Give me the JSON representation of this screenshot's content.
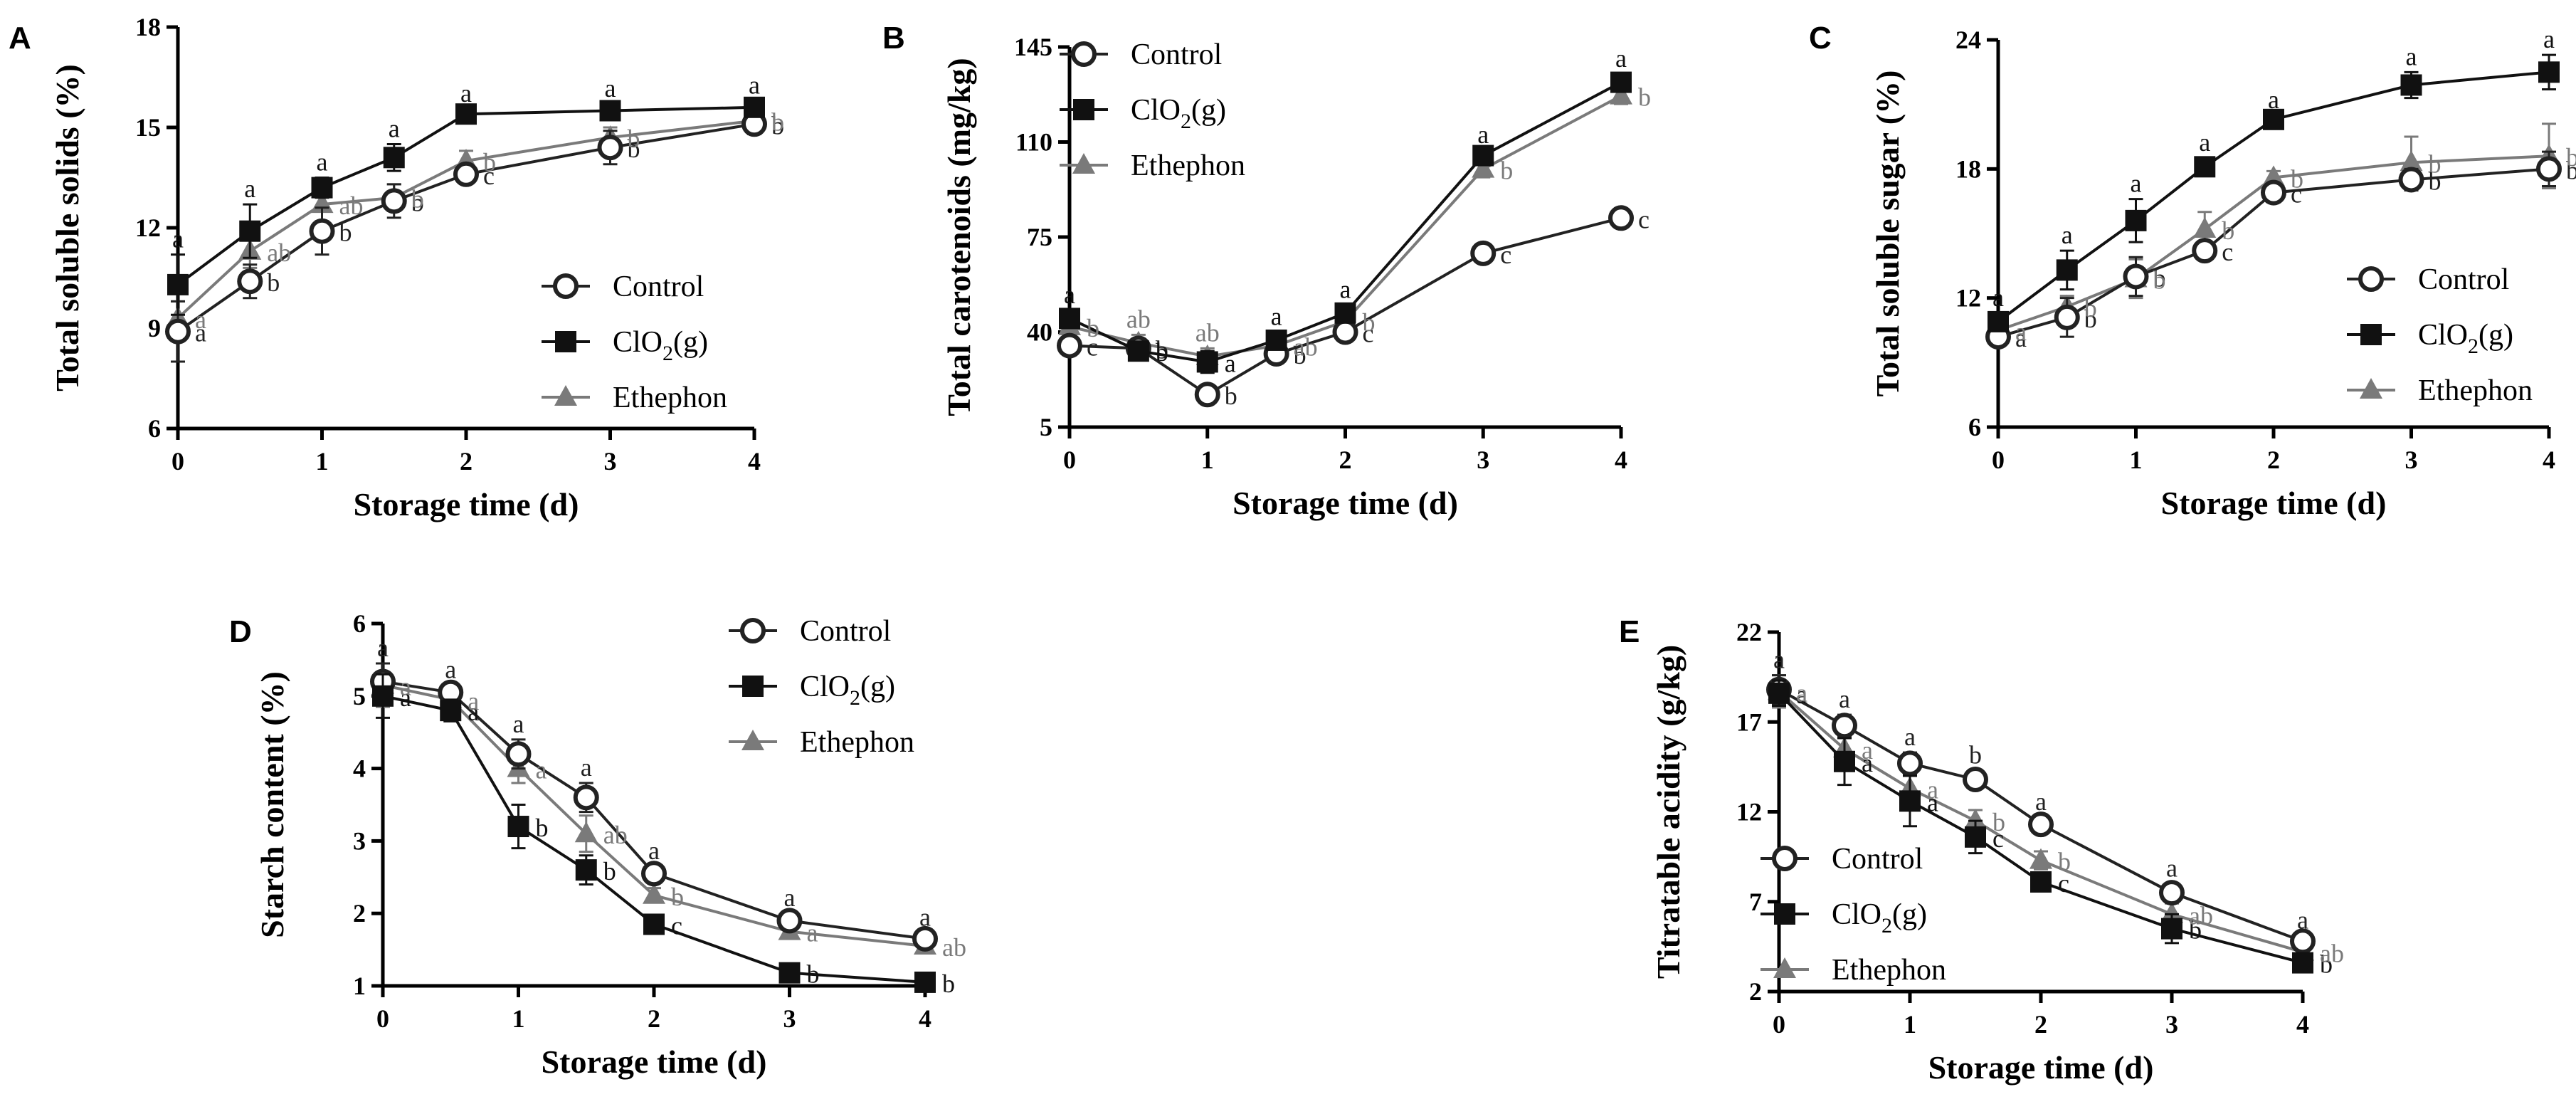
{
  "figure": {
    "legend_names": {
      "control": "Control",
      "clo2_base": "ClO",
      "clo2_sub": "2",
      "clo2_tail": "(g)",
      "ethephon": "Ethephon"
    },
    "series_colors": {
      "control": "#222222",
      "clo2": "#111111",
      "ethephon": "#7a7a7a",
      "axis": "#000000"
    }
  },
  "chart_data": [
    {
      "panel": "A",
      "type": "line",
      "ylabel": "Total soluble solids  (%)",
      "xlabel": "Storage time (d)",
      "x": [
        0,
        0.5,
        1,
        1.5,
        2,
        3,
        4
      ],
      "x_ticks": [
        0,
        1,
        2,
        3,
        4
      ],
      "xlim": [
        0,
        4
      ],
      "y_ticks": [
        6,
        9,
        12,
        15,
        18
      ],
      "ylim": [
        6,
        18
      ],
      "legend": "bottom-right",
      "series": [
        {
          "key": "control",
          "name": "Control",
          "marker": "circle-open",
          "values": [
            8.9,
            10.4,
            11.9,
            12.8,
            13.6,
            14.4,
            15.1
          ],
          "errors": [
            0.9,
            0.5,
            0.7,
            0.5,
            0.2,
            0.5,
            0.3
          ],
          "letters": [
            "a",
            "b",
            "b",
            "b",
            "c",
            "b",
            "b"
          ]
        },
        {
          "key": "clo2",
          "name": "ClO2(g)",
          "marker": "square-filled",
          "values": [
            10.3,
            11.9,
            13.2,
            14.1,
            15.4,
            15.5,
            15.6
          ],
          "errors": [
            0.9,
            0.8,
            0.3,
            0.4,
            0.15,
            0.2,
            0.2
          ],
          "letters": [
            "a",
            "a",
            "a",
            "a",
            "a",
            "a",
            "a"
          ]
        },
        {
          "key": "ethephon",
          "name": "Ethephon",
          "marker": "triangle-filled",
          "values": [
            9.3,
            11.3,
            12.7,
            12.9,
            14.0,
            14.7,
            15.2
          ],
          "errors": [
            0.5,
            0.5,
            0.5,
            0.4,
            0.3,
            0.3,
            0.2
          ],
          "letters": [
            "a",
            "ab",
            "ab",
            "b",
            "b",
            "b",
            "b"
          ]
        }
      ]
    },
    {
      "panel": "B",
      "type": "line",
      "ylabel": "Total carotenoids (mg/kg)",
      "xlabel": "Storage time (d)",
      "x": [
        0,
        0.5,
        1,
        1.5,
        2,
        3,
        4
      ],
      "x_ticks": [
        0,
        1,
        2,
        3,
        4
      ],
      "xlim": [
        0,
        4
      ],
      "y_ticks": [
        5,
        40,
        75,
        110,
        145
      ],
      "ylim": [
        5,
        145
      ],
      "legend": "top-left",
      "series": [
        {
          "key": "control",
          "name": "Control",
          "marker": "circle-open",
          "values": [
            35,
            34,
            17,
            32,
            40,
            69,
            82
          ],
          "errors": [
            2,
            2,
            2,
            2,
            2,
            2,
            2
          ],
          "letters": [
            "c",
            "b",
            "b",
            "b",
            "c",
            "c",
            "c"
          ]
        },
        {
          "key": "clo2",
          "name": "ClO2(g)",
          "marker": "square-filled",
          "values": [
            45,
            33,
            29,
            37,
            47,
            105,
            132
          ],
          "errors": [
            3,
            2,
            4,
            3,
            3,
            2,
            3
          ],
          "letters": [
            "a",
            "b",
            "a",
            "a",
            "a",
            "a",
            "a"
          ]
        },
        {
          "key": "ethephon",
          "name": "Ethephon",
          "marker": "triangle-filled",
          "values": [
            42,
            36,
            31,
            35,
            44,
            100,
            127
          ],
          "errors": [
            3,
            3,
            3,
            3,
            3,
            3,
            3
          ],
          "letters": [
            "b",
            "ab",
            "ab",
            "ab",
            "b",
            "b",
            "b"
          ]
        }
      ]
    },
    {
      "panel": "C",
      "type": "line",
      "ylabel": "Total soluble sugar (%)",
      "xlabel": "Storage time (d)",
      "x": [
        0,
        0.5,
        1,
        1.5,
        2,
        3,
        4
      ],
      "x_ticks": [
        0,
        1,
        2,
        3,
        4
      ],
      "xlim": [
        0,
        4
      ],
      "y_ticks": [
        6,
        12,
        18,
        24
      ],
      "ylim": [
        6,
        24
      ],
      "legend": "bottom-right",
      "series": [
        {
          "key": "control",
          "name": "Control",
          "marker": "circle-open",
          "values": [
            10.2,
            11.1,
            13.0,
            14.2,
            16.9,
            17.5,
            18.0
          ],
          "errors": [
            0.4,
            0.9,
            0.9,
            0.4,
            0.3,
            0.5,
            0.8
          ],
          "letters": [
            "a",
            "b",
            "b",
            "c",
            "c",
            "b",
            "b"
          ]
        },
        {
          "key": "clo2",
          "name": "ClO2(g)",
          "marker": "square-filled",
          "values": [
            10.9,
            13.3,
            15.6,
            18.1,
            20.3,
            21.9,
            22.5
          ],
          "errors": [
            0.4,
            0.9,
            1.0,
            0.4,
            0.2,
            0.6,
            0.8
          ],
          "letters": [
            "a",
            "a",
            "a",
            "a",
            "a",
            "a",
            "a"
          ]
        },
        {
          "key": "ethephon",
          "name": "Ethephon",
          "marker": "triangle-filled",
          "values": [
            10.5,
            11.6,
            12.9,
            15.2,
            17.6,
            18.3,
            18.6
          ],
          "errors": [
            0.4,
            0.5,
            0.9,
            0.8,
            0.3,
            1.2,
            1.5
          ],
          "letters": [
            "a",
            "b",
            "b",
            "b",
            "b",
            "b",
            "b"
          ]
        }
      ]
    },
    {
      "panel": "D",
      "type": "line",
      "ylabel": "Starch content (%)",
      "xlabel": "Storage time (d)",
      "x": [
        0,
        0.5,
        1,
        1.5,
        2,
        3,
        4
      ],
      "x_ticks": [
        0,
        1,
        2,
        3,
        4
      ],
      "xlim": [
        0,
        4
      ],
      "y_ticks": [
        1,
        2,
        3,
        4,
        5,
        6
      ],
      "ylim": [
        1,
        6
      ],
      "legend": "top-right",
      "series": [
        {
          "key": "control",
          "name": "Control",
          "marker": "circle-open",
          "values": [
            5.2,
            5.05,
            4.2,
            3.6,
            2.55,
            1.9,
            1.65
          ],
          "errors": [
            0.25,
            0.1,
            0.2,
            0.2,
            0.1,
            0.1,
            0.08
          ],
          "letters": [
            "a",
            "a",
            "a",
            "a",
            "a",
            "a",
            "a"
          ]
        },
        {
          "key": "clo2",
          "name": "ClO2(g)",
          "marker": "square-filled",
          "values": [
            5.0,
            4.8,
            3.2,
            2.6,
            1.85,
            1.18,
            1.05
          ],
          "errors": [
            0.3,
            0.15,
            0.3,
            0.2,
            0.08,
            0.06,
            0.06
          ],
          "letters": [
            "a",
            "a",
            "b",
            "b",
            "c",
            "b",
            "b"
          ]
        },
        {
          "key": "ethephon",
          "name": "Ethephon",
          "marker": "triangle-filled",
          "values": [
            5.15,
            4.95,
            4.0,
            3.1,
            2.25,
            1.75,
            1.55
          ],
          "errors": [
            0.3,
            0.1,
            0.2,
            0.25,
            0.1,
            0.08,
            0.08
          ],
          "letters": [
            "a",
            "a",
            "a",
            "ab",
            "b",
            "a",
            "ab"
          ]
        }
      ]
    },
    {
      "panel": "E",
      "type": "line",
      "ylabel": "Titratable acidity (g/kg)",
      "xlabel": "Storage time (d)",
      "x": [
        0,
        0.5,
        1,
        1.5,
        2,
        3,
        4
      ],
      "x_ticks": [
        0,
        1,
        2,
        3,
        4
      ],
      "xlim": [
        0,
        4
      ],
      "y_ticks": [
        2,
        7,
        12,
        17,
        22
      ],
      "ylim": [
        2,
        22
      ],
      "legend": "bottom-left",
      "series": [
        {
          "key": "control",
          "name": "Control",
          "marker": "circle-open",
          "values": [
            18.8,
            16.8,
            14.7,
            13.8,
            11.3,
            7.5,
            4.8
          ],
          "errors": [
            0.8,
            0.6,
            0.6,
            0.5,
            0.4,
            0.5,
            0.3
          ],
          "letters": [
            "a",
            "a",
            "a",
            "b",
            "a",
            "a",
            "a"
          ]
        },
        {
          "key": "clo2",
          "name": "ClO2(g)",
          "marker": "square-filled",
          "values": [
            18.6,
            14.8,
            12.6,
            10.6,
            8.1,
            5.5,
            3.6
          ],
          "errors": [
            0.7,
            1.3,
            1.4,
            0.9,
            0.4,
            0.8,
            0.3
          ],
          "letters": [
            "a",
            "a",
            "a",
            "c",
            "c",
            "b",
            "b"
          ]
        },
        {
          "key": "ethephon",
          "name": "Ethephon",
          "marker": "triangle-filled",
          "values": [
            18.7,
            15.5,
            13.3,
            11.5,
            9.3,
            6.3,
            4.2
          ],
          "errors": [
            0.9,
            0.8,
            0.8,
            0.6,
            0.5,
            0.6,
            0.4
          ],
          "letters": [
            "a",
            "a",
            "a",
            "b",
            "b",
            "ab",
            "ab"
          ]
        }
      ]
    }
  ]
}
